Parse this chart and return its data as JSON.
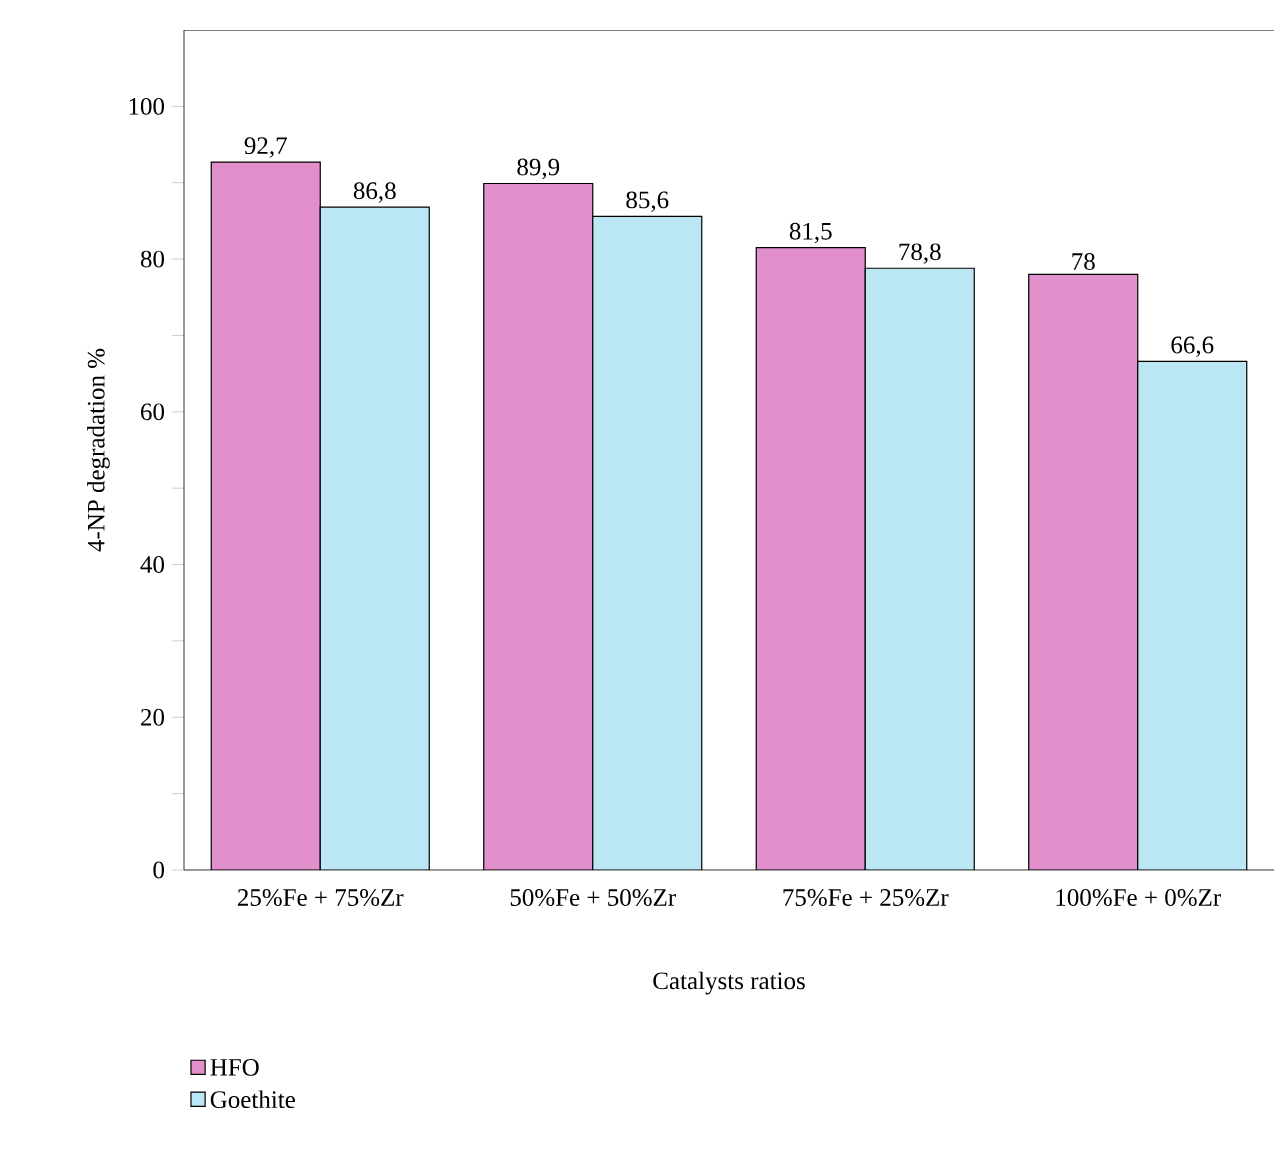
{
  "chart_data": {
    "type": "bar",
    "xlabel": "Catalysts ratios",
    "ylabel": "4-NP degradation %",
    "categories": [
      "25%Fe + 75%Zr",
      "50%Fe + 50%Zr",
      "75%Fe + 25%Zr",
      "100%Fe + 0%Zr"
    ],
    "series": [
      {
        "name": "HFO",
        "color": "#e190cc",
        "values": [
          92.7,
          89.9,
          81.5,
          78
        ],
        "value_labels": [
          "92,7",
          "89,9",
          "81,5",
          "78"
        ]
      },
      {
        "name": "Goethite",
        "color": "#bae7f3",
        "values": [
          86.8,
          85.6,
          78.8,
          66.6
        ],
        "value_labels": [
          "86,8",
          "85,6",
          "78,8",
          "66,6"
        ]
      }
    ],
    "ylim": [
      0,
      110
    ],
    "yticks": [
      0,
      {
        "value": 10,
        "label": null
      },
      20,
      {
        "value": 30,
        "label": null
      },
      40,
      {
        "value": 50,
        "label": null
      },
      60,
      {
        "value": 70,
        "label": null
      },
      80,
      {
        "value": 90,
        "label": null
      },
      100
    ],
    "grid": false,
    "legend": "bottom left"
  }
}
